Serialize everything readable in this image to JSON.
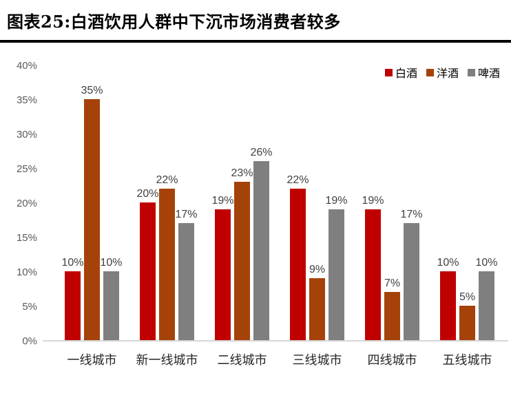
{
  "header": {
    "title": "图表25:白酒饮用人群中下沉市场消费者较多"
  },
  "chart_data": {
    "type": "bar",
    "title": "白酒饮用人群中下沉市场消费者较多",
    "categories": [
      "一线城市",
      "新一线城市",
      "二线城市",
      "三线城市",
      "四线城市",
      "五线城市"
    ],
    "series": [
      {
        "name": "白酒",
        "color": "#C00000",
        "values": [
          10,
          20,
          19,
          22,
          19,
          10
        ]
      },
      {
        "name": "洋酒",
        "color": "#A54209",
        "values": [
          35,
          22,
          23,
          9,
          7,
          5
        ]
      },
      {
        "name": "啤酒",
        "color": "#7F7F7F",
        "values": [
          10,
          17,
          26,
          19,
          17,
          10
        ]
      }
    ],
    "value_suffix": "%",
    "xlabel": "",
    "ylabel": "",
    "ylim": [
      0,
      40
    ],
    "ytick_step": 5,
    "yticks": [
      "40%",
      "35%",
      "30%",
      "25%",
      "20%",
      "15%",
      "10%",
      "5%",
      "0%"
    ],
    "grid": false,
    "legend_position": "top-right",
    "colors": {
      "axis_text": "#595959",
      "value_label_text": "#404040",
      "category_text": "#262626",
      "baseline": "#D6D6D6",
      "title_text": "#000000",
      "divider": "#000000"
    }
  }
}
